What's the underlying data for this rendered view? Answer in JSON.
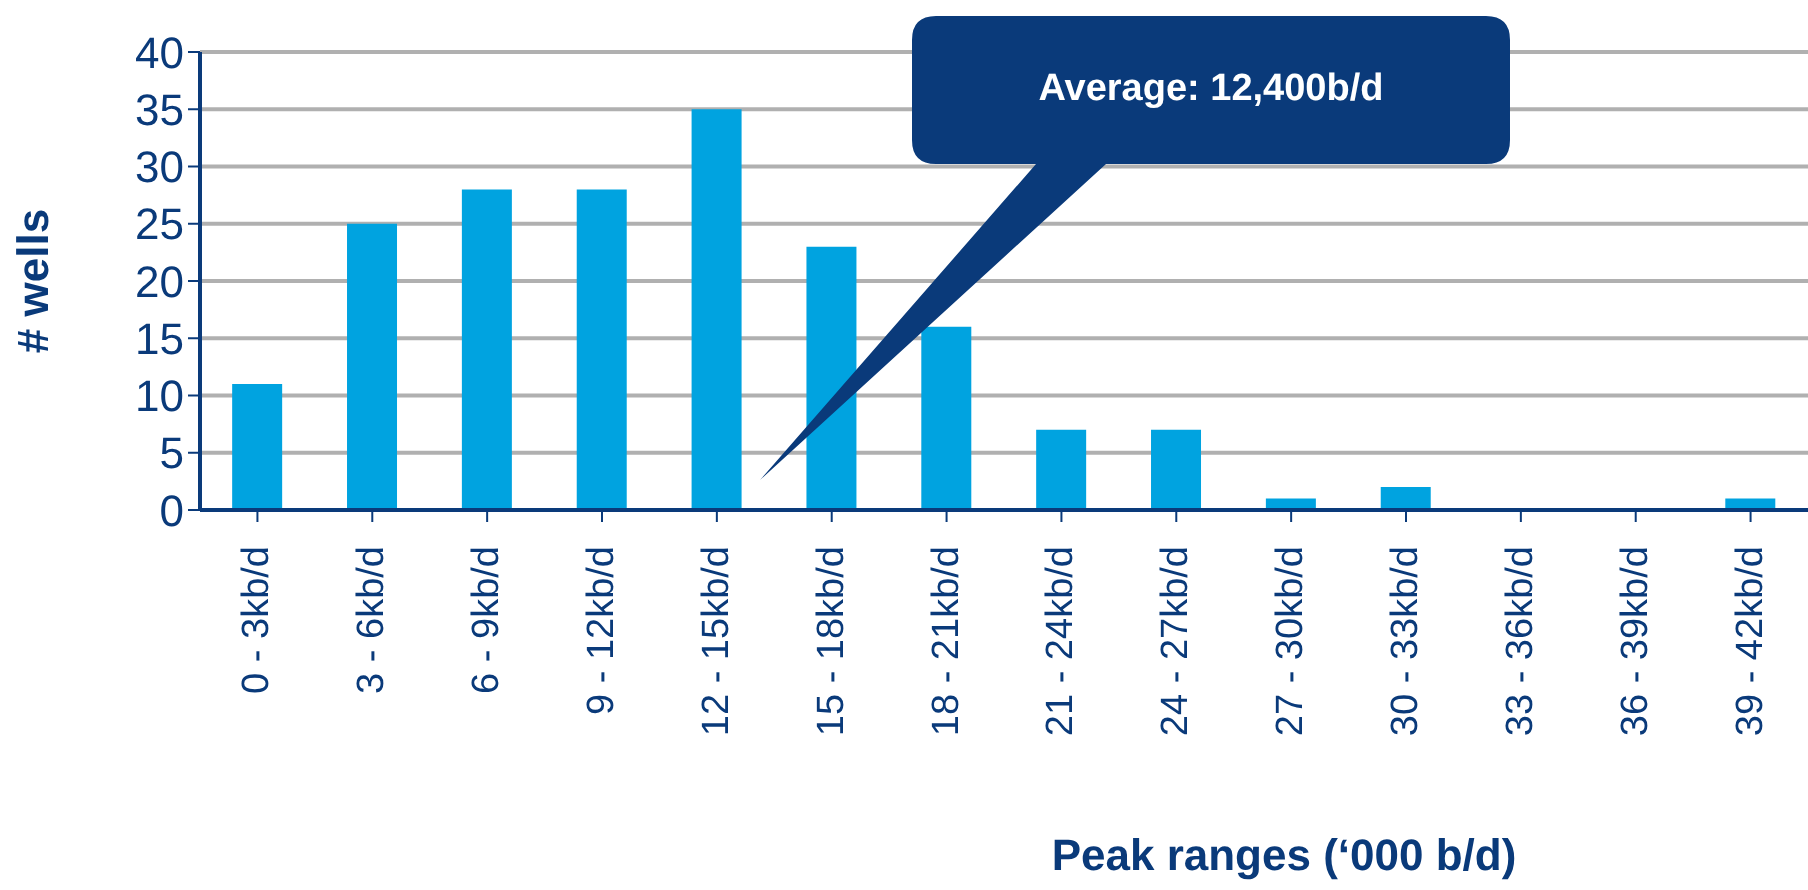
{
  "chart_data": {
    "type": "bar",
    "xlabel": "Peak ranges (‘000 b/d)",
    "ylabel": "# wells",
    "categories": [
      "0 - 3kb/d",
      "3 - 6kb/d",
      "6 - 9kb/d",
      "9 - 12kb/d",
      "12 - 15kb/d",
      "15 - 18kb/d",
      "18 - 21kb/d",
      "21 - 24kb/d",
      "24 - 27kb/d",
      "27 - 30kb/d",
      "30 - 33kb/d",
      "33 - 36kb/d",
      "36 - 39kb/d",
      "39 - 42kb/d"
    ],
    "values": [
      11,
      25,
      28,
      28,
      35,
      23,
      16,
      7,
      7,
      1,
      2,
      0,
      0,
      1
    ],
    "color": "#00a3e0",
    "ylim": [
      0,
      40
    ],
    "yticks": [
      0,
      5,
      10,
      15,
      20,
      25,
      30,
      35,
      40
    ],
    "grid": "y",
    "annotations": [
      "Average: 12,400b/d"
    ]
  }
}
